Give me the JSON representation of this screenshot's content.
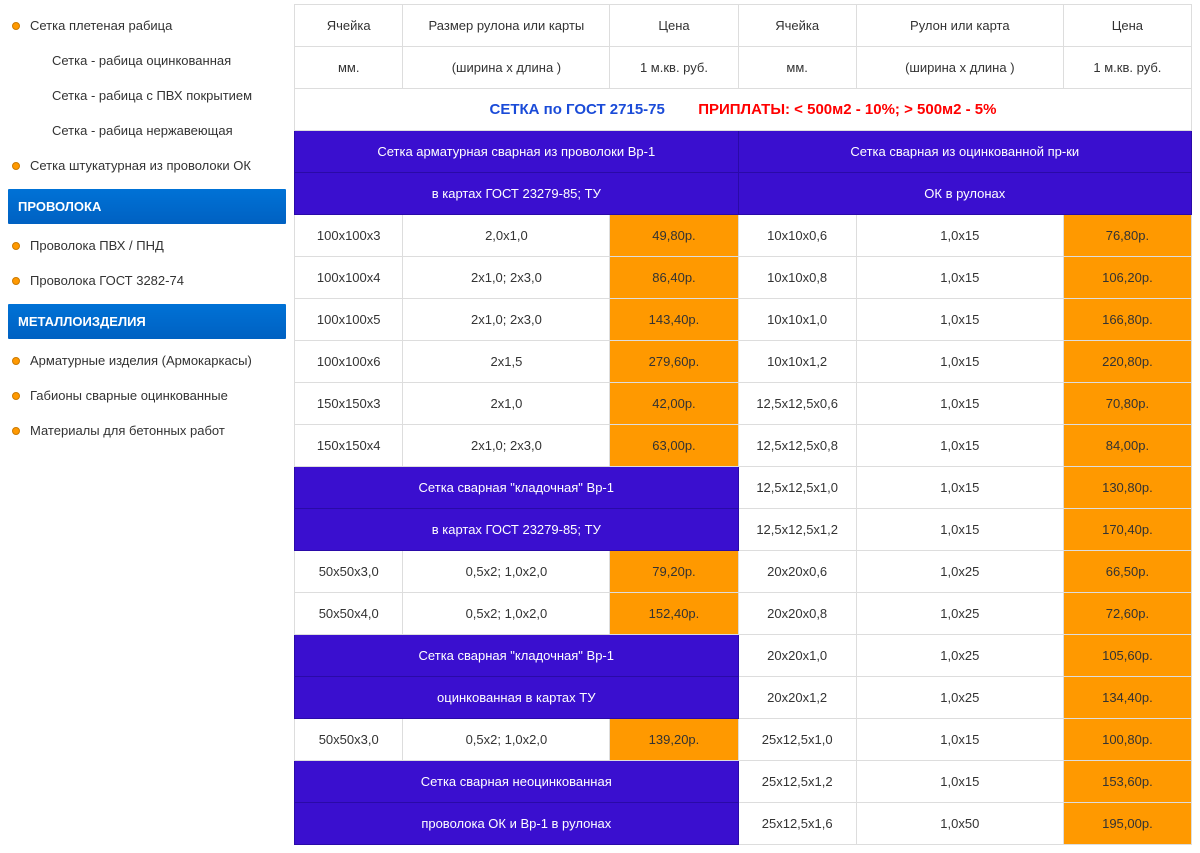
{
  "sidebar": {
    "items": [
      {
        "label": "Сетка плетеная рабица",
        "type": "item"
      },
      {
        "label": "Сетка - рабица оцинкованная",
        "type": "sub"
      },
      {
        "label": "Сетка - рабица с ПВХ покрытием",
        "type": "sub"
      },
      {
        "label": "Сетка - рабица нержавеющая",
        "type": "sub"
      },
      {
        "label": "Сетка штукатурная из проволоки ОК",
        "type": "item"
      },
      {
        "label": "ПРОВОЛОКА",
        "type": "header"
      },
      {
        "label": "Проволока ПВХ / ПНД",
        "type": "item"
      },
      {
        "label": "Проволока ГОСТ 3282-74",
        "type": "item"
      },
      {
        "label": "МЕТАЛЛОИЗДЕЛИЯ",
        "type": "header"
      },
      {
        "label": "Арматурные изделия (Армокаркасы)",
        "type": "item"
      },
      {
        "label": "Габионы сварные оцинкованные",
        "type": "item"
      },
      {
        "label": "Материалы для бетонных работ",
        "type": "item"
      }
    ]
  },
  "table": {
    "col_widths_pct": [
      11,
      21,
      13,
      12,
      21,
      13
    ],
    "header_row1": [
      "Ячейка",
      "Размер рулона или карты",
      "Цена",
      "Ячейка",
      "Рулон или карта",
      "Цена"
    ],
    "header_row2": [
      "мм.",
      "(ширина x длина )",
      "1 м.кв. руб.",
      "мм.",
      "(ширина x длина )",
      "1 м.кв. руб."
    ],
    "banner_left": "СЕТКА по ГОСТ 2715-75",
    "banner_right": "ПРИПЛАТЫ: < 500м2 - 10%; > 500м2 - 5%",
    "group_header_left_1": "Сетка арматурная сварная из проволоки Вр-1",
    "group_header_left_2": "в картах ГОСТ 23279-85; ТУ",
    "group_header_right_1": "Сетка сварная из оцинкованной пр-ки",
    "group_header_right_2": "ОК в рулонах",
    "rows": [
      {
        "left": [
          "100х100х3",
          "2,0x1,0",
          "49,80р."
        ],
        "right": [
          "10х10х0,6",
          "1,0x15",
          "76,80р."
        ]
      },
      {
        "left": [
          "100х100х4",
          "2x1,0; 2x3,0",
          "86,40р."
        ],
        "right": [
          "10х10х0,8",
          "1,0x15",
          "106,20р."
        ]
      },
      {
        "left": [
          "100х100х5",
          "2x1,0; 2x3,0",
          "143,40р."
        ],
        "right": [
          "10х10х1,0",
          "1,0x15",
          "166,80р."
        ]
      },
      {
        "left": [
          "100х100х6",
          "2x1,5",
          "279,60р."
        ],
        "right": [
          "10х10х1,2",
          "1,0x15",
          "220,80р."
        ]
      },
      {
        "left": [
          "150х150х3",
          "2x1,0",
          "42,00р."
        ],
        "right": [
          "12,5х12,5х0,6",
          "1,0x15",
          "70,80р."
        ]
      },
      {
        "left": [
          "150х150х4",
          "2x1,0; 2x3,0",
          "63,00р."
        ],
        "right": [
          "12,5х12,5х0,8",
          "1,0x15",
          "84,00р."
        ]
      },
      {
        "left_blue": "Сетка сварная \"кладочная\" Вр-1",
        "right": [
          "12,5х12,5х1,0",
          "1,0x15",
          "130,80р."
        ]
      },
      {
        "left_blue": "в картах ГОСТ 23279-85; ТУ",
        "right": [
          "12,5х12,5х1,2",
          "1,0x15",
          "170,40р."
        ]
      },
      {
        "left": [
          "50х50х3,0",
          "0,5x2; 1,0x2,0",
          "79,20р."
        ],
        "right": [
          "20х20х0,6",
          "1,0x25",
          "66,50р."
        ]
      },
      {
        "left": [
          "50х50х4,0",
          "0,5x2; 1,0x2,0",
          "152,40р."
        ],
        "right": [
          "20х20х0,8",
          "1,0x25",
          "72,60р."
        ]
      },
      {
        "left_blue": "Сетка сварная \"кладочная\" Вр-1",
        "right": [
          "20х20х1,0",
          "1,0x25",
          "105,60р."
        ]
      },
      {
        "left_blue": "оцинкованная в картах ТУ",
        "right": [
          "20х20х1,2",
          "1,0x25",
          "134,40р."
        ]
      },
      {
        "left": [
          "50х50х3,0",
          "0,5x2; 1,0x2,0",
          "139,20р."
        ],
        "right": [
          "25х12,5х1,0",
          "1,0x15",
          "100,80р."
        ]
      },
      {
        "left_blue": "Сетка сварная неоцинкованная",
        "right": [
          "25х12,5х1,2",
          "1,0x15",
          "153,60р."
        ]
      },
      {
        "left_blue": "проволока ОК и Вр-1 в рулонах",
        "right": [
          "25х12,5х1,6",
          "1,0x50",
          "195,00р."
        ]
      }
    ],
    "colors": {
      "blue_bg": "#3a0fcf",
      "orange_bg": "#ff9900",
      "border": "#ddd",
      "header_grad_top": "#0072d6",
      "header_grad_bot": "#0061c2"
    }
  }
}
